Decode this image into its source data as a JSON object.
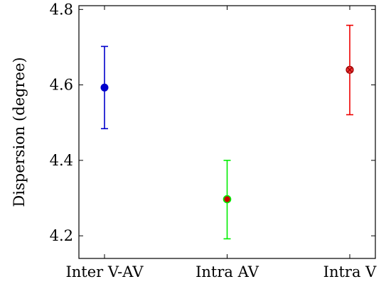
{
  "chart_data": {
    "type": "scatter",
    "title": "",
    "xlabel": "",
    "ylabel": "Dispersion (degree)",
    "ylim": [
      4.14,
      4.81
    ],
    "y_ticks": [
      4.2,
      4.4,
      4.6,
      4.8
    ],
    "grid": false,
    "categories": [
      "Inter V-AV",
      "Intra AV",
      "Intra V"
    ],
    "points": [
      {
        "category": "Inter V-AV",
        "y": 4.593,
        "err_low": 4.484,
        "err_high": 4.702,
        "color": "#0000cc",
        "marker": "filled-circle"
      },
      {
        "category": "Intra AV",
        "y": 4.297,
        "err_low": 4.192,
        "err_high": 4.4,
        "color": "#00ee00",
        "marker": "circle-red-fill"
      },
      {
        "category": "Intra V",
        "y": 4.64,
        "err_low": 4.521,
        "err_high": 4.758,
        "color": "#ee0000",
        "marker": "circle-cross"
      }
    ]
  }
}
